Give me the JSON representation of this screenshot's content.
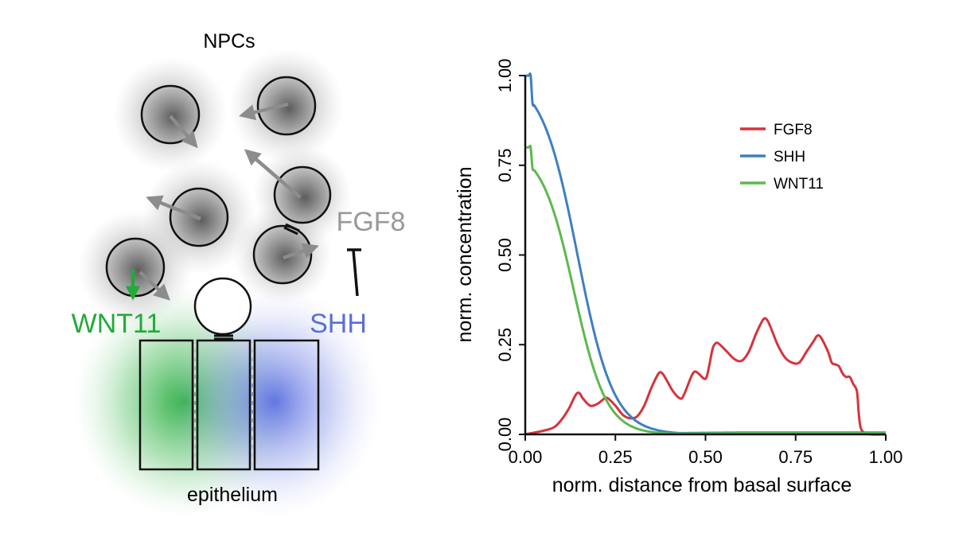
{
  "diagram": {
    "npcs_label": "NPCs",
    "fgf8_label": "FGF8",
    "wnt11_label": "WNT11",
    "shh_label": "SHH",
    "epithelium_label": "epithelium",
    "colors": {
      "wnt11": "#22aa3a",
      "shh": "#5a6fd6",
      "fgf8": "#999999",
      "arrow": "#8c8c8c",
      "green_arrow": "#22aa3a"
    }
  },
  "chart_data": {
    "type": "line",
    "xlabel": "norm. distance from basal surface",
    "ylabel": "norm. concentration",
    "xlim": [
      0,
      1
    ],
    "ylim": [
      0,
      1
    ],
    "xticks": [
      "0.00",
      "0.25",
      "0.50",
      "0.75",
      "1.00"
    ],
    "yticks": [
      "0.00",
      "0.25",
      "0.50",
      "0.75",
      "1.00"
    ],
    "grid": false,
    "legend_position": "top-right",
    "series": [
      {
        "name": "FGF8",
        "color": "#d6333b",
        "x": [
          0.0,
          0.05,
          0.08,
          0.1,
          0.12,
          0.14,
          0.15,
          0.16,
          0.18,
          0.2,
          0.22,
          0.23,
          0.25,
          0.27,
          0.29,
          0.31,
          0.33,
          0.35,
          0.37,
          0.38,
          0.39,
          0.41,
          0.43,
          0.44,
          0.46,
          0.47,
          0.48,
          0.5,
          0.51,
          0.52,
          0.53,
          0.54,
          0.56,
          0.58,
          0.6,
          0.62,
          0.64,
          0.66,
          0.67,
          0.68,
          0.7,
          0.72,
          0.74,
          0.76,
          0.78,
          0.8,
          0.81,
          0.82,
          0.84,
          0.85,
          0.86,
          0.87,
          0.88,
          0.89,
          0.9,
          0.91,
          0.92,
          0.925,
          0.93,
          0.94,
          0.96,
          1.0
        ],
        "y": [
          0.0,
          0.01,
          0.02,
          0.04,
          0.07,
          0.11,
          0.115,
          0.1,
          0.08,
          0.085,
          0.1,
          0.1,
          0.08,
          0.055,
          0.045,
          0.05,
          0.08,
          0.13,
          0.17,
          0.17,
          0.155,
          0.12,
          0.1,
          0.11,
          0.16,
          0.175,
          0.17,
          0.155,
          0.19,
          0.24,
          0.255,
          0.25,
          0.23,
          0.21,
          0.205,
          0.23,
          0.28,
          0.32,
          0.32,
          0.3,
          0.25,
          0.215,
          0.2,
          0.2,
          0.23,
          0.26,
          0.275,
          0.27,
          0.23,
          0.2,
          0.195,
          0.19,
          0.17,
          0.16,
          0.16,
          0.14,
          0.12,
          0.06,
          0.02,
          0.005,
          0.0,
          0.0
        ]
      },
      {
        "name": "SHH",
        "color": "#3f7fc0",
        "function": "sigmoid",
        "params": {
          "amplitude": 1.0,
          "center": 0.145,
          "width": 0.05
        },
        "y_at_x1": 0.005
      },
      {
        "name": "WNT11",
        "color": "#5db84e",
        "function": "sigmoid",
        "params": {
          "amplitude": 0.8,
          "center": 0.135,
          "width": 0.045
        },
        "y_at_x1": 0.003
      }
    ]
  }
}
